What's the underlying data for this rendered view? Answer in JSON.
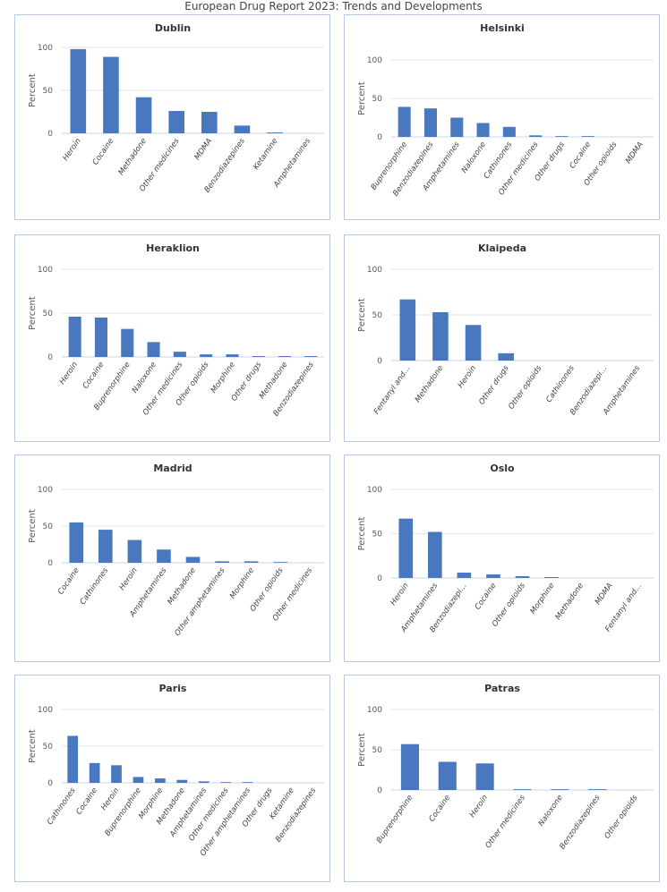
{
  "header": {
    "title": "European Drug Report 2023: Trends and Developments"
  },
  "chart_data": [
    {
      "type": "bar",
      "title": "Dublin",
      "ylabel": "Percent",
      "ylim": [
        0,
        100
      ],
      "yticks": [
        "0",
        "50",
        "100"
      ],
      "grid": true,
      "categories": [
        "Heroin",
        "Cocaine",
        "Methadone",
        "Other medicines",
        "MDMA",
        "Benzodiazepines",
        "Ketamine",
        "Amphetamines"
      ],
      "values": [
        98,
        89,
        42,
        26,
        25,
        9,
        1,
        0
      ]
    },
    {
      "type": "bar",
      "title": "Helsinki",
      "ylabel": "Percent",
      "ylim": [
        0,
        100
      ],
      "yticks": [
        "0",
        "50",
        "100"
      ],
      "grid": true,
      "categories": [
        "Buprenorphine",
        "Benzodiazepines",
        "Amphetamines",
        "Naloxone",
        "Cathinones",
        "Other medicines",
        "Other drugs",
        "Cocaine",
        "Other opioids",
        "MDMA"
      ],
      "values": [
        39,
        37,
        25,
        18,
        13,
        2,
        1,
        1,
        0,
        0
      ]
    },
    {
      "type": "bar",
      "title": "Heraklion",
      "ylabel": "Percent",
      "ylim": [
        0,
        100
      ],
      "yticks": [
        "0",
        "50",
        "100"
      ],
      "grid": true,
      "categories": [
        "Heroin",
        "Cocaine",
        "Buprenorphine",
        "Naloxone",
        "Other medicines",
        "Other opioids",
        "Morphine",
        "Other drugs",
        "Methadone",
        "Benzodiazepines"
      ],
      "values": [
        46,
        45,
        32,
        17,
        6,
        3,
        3,
        1,
        1,
        1
      ]
    },
    {
      "type": "bar",
      "title": "Klaipeda",
      "ylabel": "Percent",
      "ylim": [
        0,
        100
      ],
      "yticks": [
        "0",
        "50",
        "100"
      ],
      "grid": true,
      "categories": [
        "Fentanyl and…",
        "Methadone",
        "Heroin",
        "Other drugs",
        "Other opioids",
        "Cathinones",
        "Benzodiazepi…",
        "Amphetamines"
      ],
      "values": [
        67,
        53,
        39,
        8,
        0,
        0,
        0,
        0
      ]
    },
    {
      "type": "bar",
      "title": "Madrid",
      "ylabel": "Percent",
      "ylim": [
        0,
        100
      ],
      "yticks": [
        "0",
        "50",
        "100"
      ],
      "grid": true,
      "categories": [
        "Cocaine",
        "Cathinones",
        "Heroin",
        "Amphetamines",
        "Methadone",
        "Other amphetamines",
        "Morphine",
        "Other opioids",
        "Other medicines"
      ],
      "values": [
        55,
        45,
        31,
        18,
        8,
        2,
        2,
        1,
        0
      ]
    },
    {
      "type": "bar",
      "title": "Oslo",
      "ylabel": "Percent",
      "ylim": [
        0,
        100
      ],
      "yticks": [
        "0",
        "50",
        "100"
      ],
      "grid": true,
      "categories": [
        "Heroin",
        "Amphetamines",
        "Benzodiazepi…",
        "Cocaine",
        "Other opioids",
        "Morphine",
        "Methadone",
        "MDMA",
        "Fentanyl and…"
      ],
      "values": [
        67,
        52,
        6,
        4,
        2,
        1,
        0,
        0,
        0
      ]
    },
    {
      "type": "bar",
      "title": "Paris",
      "ylabel": "Percent",
      "ylim": [
        0,
        100
      ],
      "yticks": [
        "0",
        "50",
        "100"
      ],
      "grid": true,
      "categories": [
        "Cathinones",
        "Cocaine",
        "Heroin",
        "Buprenorphine",
        "Morphine",
        "Methadone",
        "Amphetamines",
        "Other medicines",
        "Other amphetamines",
        "Other drugs",
        "Ketamine",
        "Benzodiazepines"
      ],
      "values": [
        64,
        27,
        24,
        8,
        6,
        4,
        2,
        1,
        1,
        0,
        0,
        0
      ]
    },
    {
      "type": "bar",
      "title": "Patras",
      "ylabel": "Percent",
      "ylim": [
        0,
        100
      ],
      "yticks": [
        "0",
        "50",
        "100"
      ],
      "grid": true,
      "categories": [
        "Buprenorphine",
        "Cocaine",
        "Heroin",
        "Other medicines",
        "Naloxone",
        "Benzodiazepines",
        "Other opioids"
      ],
      "values": [
        57,
        35,
        33,
        1,
        1,
        1,
        0
      ]
    }
  ],
  "colors": {
    "bar": "#4a78be",
    "grid": "#e3e3e3",
    "axis": "#c9d5e8"
  }
}
